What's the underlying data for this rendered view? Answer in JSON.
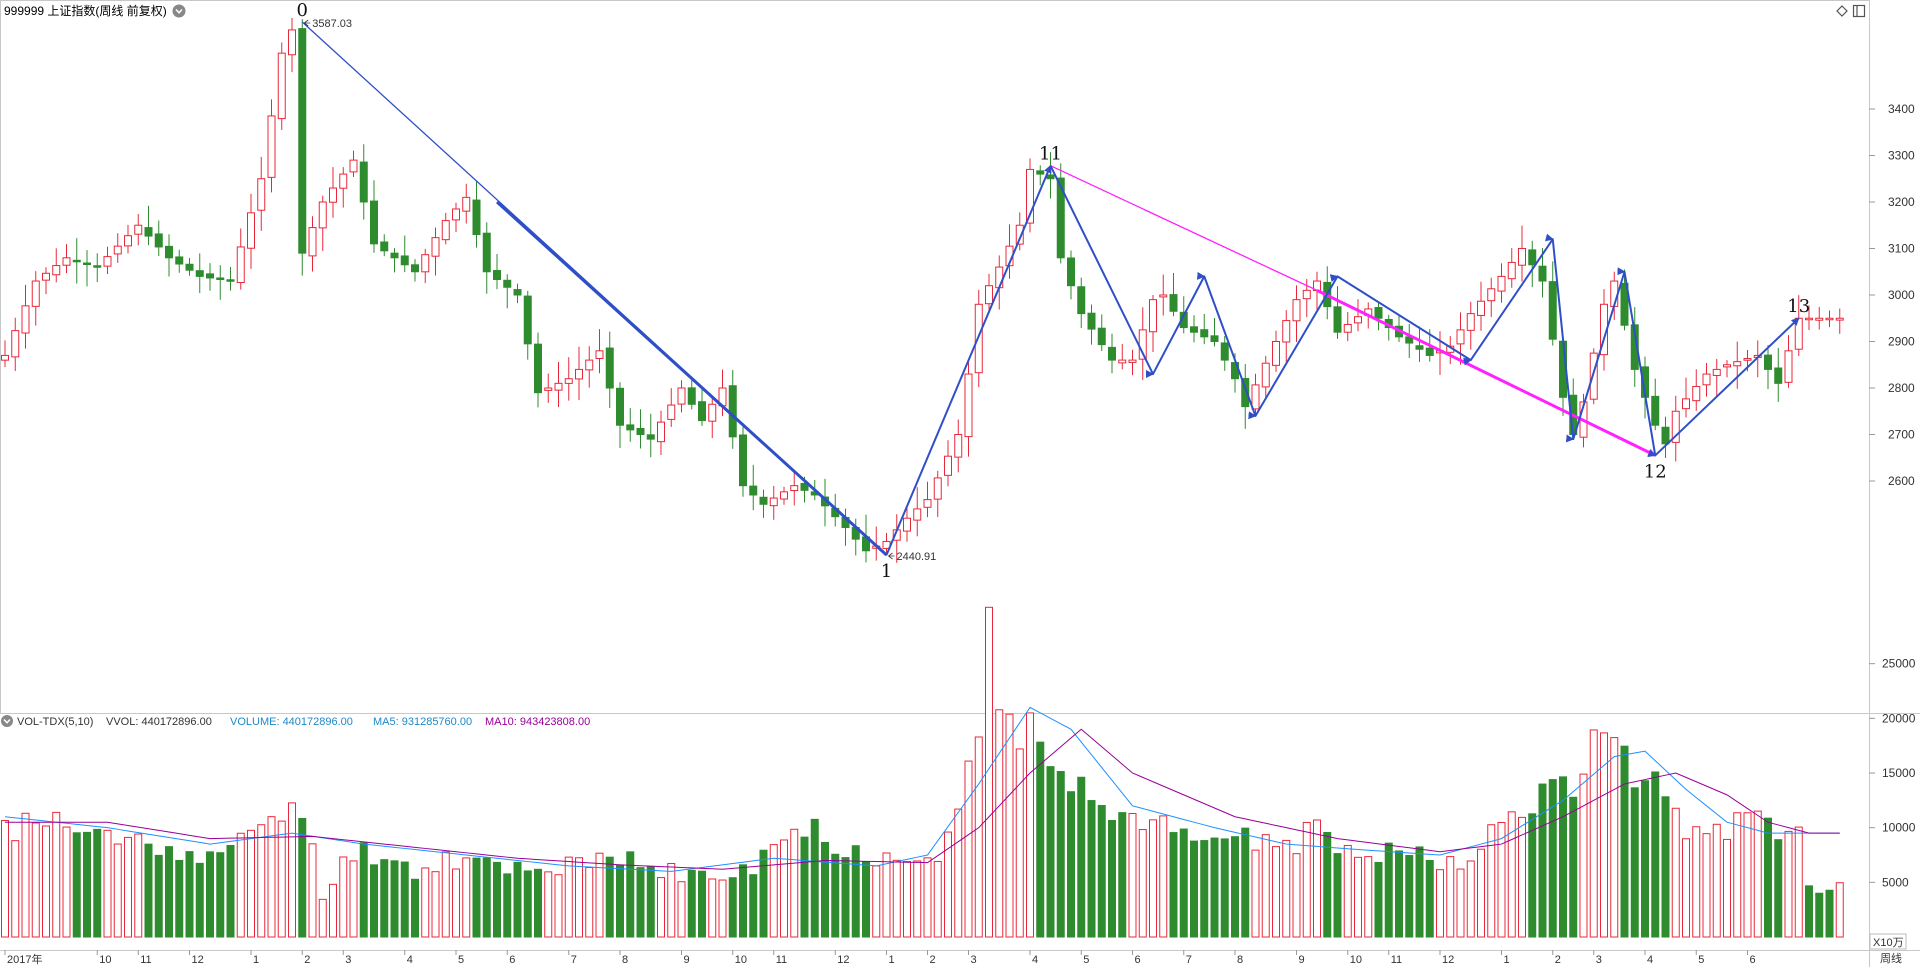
{
  "header": {
    "title": "999999 上证指数(周线 前复权)",
    "diamond_icon": "diamond-icon",
    "window_icon": "window-icon"
  },
  "volume_header": {
    "indicator": "VOL-TDX(5,10)",
    "vvol": "VVOL: 440172896.00",
    "volume": "VOLUME: 440172896.00",
    "ma5": "MA5: 931285760.00",
    "ma10": "MA10: 943423808.00"
  },
  "footer": {
    "period_label": "周线",
    "vol_unit": "X10万"
  },
  "colors": {
    "up": "#e8283a",
    "down": "#2e8b2e",
    "wave_blue": "#2f4fc8",
    "wave_magenta": "#ff21ff",
    "ma5": "#1e90ff",
    "ma10": "#990099",
    "vvol_text": "#333333",
    "volume_text": "#1e88c8",
    "ma5_text": "#1e88c8",
    "ma10_text": "#990099"
  },
  "chart_data": {
    "type": "candlestick",
    "price_axis": {
      "min": 2400,
      "max": 3600,
      "ticks": [
        2600,
        2700,
        2800,
        2900,
        3000,
        3100,
        3200,
        3300,
        3400
      ]
    },
    "volume_axis": {
      "min": 0,
      "max": 27500,
      "ticks": [
        5000,
        10000,
        15000,
        20000,
        25000
      ]
    },
    "weeks": 180,
    "time_labels": [
      {
        "i": 0,
        "label": "2017年"
      },
      {
        "i": 9,
        "label": "10"
      },
      {
        "i": 13,
        "label": "11"
      },
      {
        "i": 18,
        "label": "12"
      },
      {
        "i": 24,
        "label": "1"
      },
      {
        "i": 29,
        "label": "2"
      },
      {
        "i": 33,
        "label": "3"
      },
      {
        "i": 39,
        "label": "4"
      },
      {
        "i": 44,
        "label": "5"
      },
      {
        "i": 49,
        "label": "6"
      },
      {
        "i": 55,
        "label": "7"
      },
      {
        "i": 60,
        "label": "8"
      },
      {
        "i": 66,
        "label": "9"
      },
      {
        "i": 71,
        "label": "10"
      },
      {
        "i": 75,
        "label": "11"
      },
      {
        "i": 81,
        "label": "12"
      },
      {
        "i": 86,
        "label": "1"
      },
      {
        "i": 90,
        "label": "2"
      },
      {
        "i": 94,
        "label": "3"
      },
      {
        "i": 100,
        "label": "4"
      },
      {
        "i": 105,
        "label": "5"
      },
      {
        "i": 110,
        "label": "6"
      },
      {
        "i": 115,
        "label": "7"
      },
      {
        "i": 120,
        "label": "8"
      },
      {
        "i": 126,
        "label": "9"
      },
      {
        "i": 131,
        "label": "10"
      },
      {
        "i": 135,
        "label": "11"
      },
      {
        "i": 140,
        "label": "12"
      },
      {
        "i": 146,
        "label": "1"
      },
      {
        "i": 151,
        "label": "2"
      },
      {
        "i": 155,
        "label": "3"
      },
      {
        "i": 160,
        "label": "4"
      },
      {
        "i": 165,
        "label": "5"
      },
      {
        "i": 170,
        "label": "6"
      }
    ],
    "anchors": [
      [
        0,
        2870
      ],
      [
        3,
        3030
      ],
      [
        6,
        3080
      ],
      [
        9,
        3060
      ],
      [
        13,
        3150
      ],
      [
        16,
        3080
      ],
      [
        19,
        3040
      ],
      [
        22,
        3030
      ],
      [
        25,
        3250
      ],
      [
        27,
        3520
      ],
      [
        28,
        3570
      ],
      [
        29,
        3090
      ],
      [
        31,
        3200
      ],
      [
        34,
        3290
      ],
      [
        36,
        3110
      ],
      [
        40,
        3050
      ],
      [
        43,
        3160
      ],
      [
        45,
        3210
      ],
      [
        47,
        3050
      ],
      [
        50,
        3000
      ],
      [
        52,
        2790
      ],
      [
        55,
        2820
      ],
      [
        58,
        2880
      ],
      [
        60,
        2720
      ],
      [
        63,
        2690
      ],
      [
        66,
        2800
      ],
      [
        68,
        2730
      ],
      [
        70,
        2800
      ],
      [
        72,
        2590
      ],
      [
        74,
        2550
      ],
      [
        77,
        2590
      ],
      [
        79,
        2570
      ],
      [
        82,
        2500
      ],
      [
        84,
        2450
      ],
      [
        86,
        2470
      ],
      [
        88,
        2520
      ],
      [
        90,
        2560
      ],
      [
        93,
        2700
      ],
      [
        94,
        2830
      ],
      [
        95,
        2980
      ],
      [
        97,
        3060
      ],
      [
        99,
        3150
      ],
      [
        100,
        3270
      ],
      [
        102,
        3250
      ],
      [
        103,
        3080
      ],
      [
        105,
        2960
      ],
      [
        108,
        2860
      ],
      [
        110,
        2860
      ],
      [
        112,
        2990
      ],
      [
        113,
        3000
      ],
      [
        115,
        2930
      ],
      [
        118,
        2900
      ],
      [
        120,
        2820
      ],
      [
        121,
        2760
      ],
      [
        124,
        2900
      ],
      [
        126,
        2990
      ],
      [
        128,
        3030
      ],
      [
        130,
        2920
      ],
      [
        133,
        2970
      ],
      [
        136,
        2910
      ],
      [
        139,
        2870
      ],
      [
        141,
        2890
      ],
      [
        143,
        2960
      ],
      [
        146,
        3040
      ],
      [
        148,
        3100
      ],
      [
        150,
        3030
      ],
      [
        152,
        2780
      ],
      [
        153,
        2700
      ],
      [
        154,
        2770
      ],
      [
        156,
        2980
      ],
      [
        157,
        3030
      ],
      [
        159,
        2840
      ],
      [
        161,
        2720
      ],
      [
        162,
        2680
      ],
      [
        163,
        2750
      ],
      [
        166,
        2830
      ],
      [
        168,
        2850
      ],
      [
        171,
        2870
      ],
      [
        173,
        2810
      ],
      [
        175,
        2950
      ]
    ],
    "swing_points": [
      {
        "label": "0",
        "i": 29,
        "price": 3587.03,
        "price_label": "3587.03"
      },
      {
        "label": "1",
        "i": 86,
        "price": 2440.91,
        "price_label": "2440.91"
      },
      {
        "label": "11",
        "i": 102,
        "price": 3278
      },
      {
        "label": "12",
        "i": 161,
        "price": 2655
      },
      {
        "label": "13",
        "i": 175,
        "price": 2950
      }
    ],
    "wave_lines": [
      {
        "color": "blue",
        "width": 1.3,
        "points": [
          [
            29,
            3587
          ],
          [
            86,
            2441
          ]
        ]
      },
      {
        "color": "blue",
        "width": 3,
        "points": [
          [
            48,
            3200
          ],
          [
            86,
            2441
          ]
        ]
      },
      {
        "color": "blue",
        "width": 2,
        "arrow": true,
        "points": [
          [
            86,
            2441
          ],
          [
            102,
            3278
          ]
        ]
      },
      {
        "color": "magenta",
        "width": 1.3,
        "points": [
          [
            102,
            3278
          ],
          [
            128,
            3010
          ]
        ]
      },
      {
        "color": "magenta",
        "width": 3,
        "arrow": true,
        "points": [
          [
            128,
            3010
          ],
          [
            161,
            2655
          ]
        ]
      },
      {
        "color": "blue",
        "width": 2,
        "arrow": true,
        "points": [
          [
            102,
            3278
          ],
          [
            112,
            2830
          ],
          [
            117,
            3040
          ],
          [
            122,
            2740
          ],
          [
            130,
            3040
          ],
          [
            143,
            2860
          ],
          [
            151,
            3120
          ],
          [
            153,
            2690
          ],
          [
            158,
            3050
          ],
          [
            161,
            2655
          ],
          [
            175,
            2950
          ]
        ]
      }
    ],
    "volume": {
      "anchors": [
        [
          0,
          9500
        ],
        [
          3,
          11000
        ],
        [
          6,
          10000
        ],
        [
          9,
          9000
        ],
        [
          13,
          9000
        ],
        [
          16,
          8500
        ],
        [
          19,
          7000
        ],
        [
          22,
          7500
        ],
        [
          25,
          11000
        ],
        [
          28,
          11000
        ],
        [
          29,
          12000
        ],
        [
          31,
          4000
        ],
        [
          34,
          8000
        ],
        [
          37,
          7500
        ],
        [
          40,
          6000
        ],
        [
          43,
          7200
        ],
        [
          46,
          6900
        ],
        [
          49,
          6600
        ],
        [
          52,
          6400
        ],
        [
          55,
          6500
        ],
        [
          58,
          6700
        ],
        [
          61,
          6900
        ],
        [
          64,
          6200
        ],
        [
          67,
          5600
        ],
        [
          70,
          5400
        ],
        [
          73,
          6300
        ],
        [
          76,
          8800
        ],
        [
          79,
          10000
        ],
        [
          82,
          8000
        ],
        [
          85,
          7200
        ],
        [
          88,
          8000
        ],
        [
          91,
          7800
        ],
        [
          93,
          11000
        ],
        [
          95,
          19000
        ],
        [
          96,
          26500
        ],
        [
          98,
          18500
        ],
        [
          100,
          18000
        ],
        [
          101,
          19000
        ],
        [
          103,
          16500
        ],
        [
          105,
          14000
        ],
        [
          107,
          12000
        ],
        [
          110,
          10000
        ],
        [
          113,
          10500
        ],
        [
          116,
          10000
        ],
        [
          119,
          9000
        ],
        [
          122,
          8700
        ],
        [
          125,
          8600
        ],
        [
          128,
          9400
        ],
        [
          131,
          8000
        ],
        [
          134,
          8000
        ],
        [
          137,
          7800
        ],
        [
          140,
          7200
        ],
        [
          143,
          7300
        ],
        [
          146,
          10000
        ],
        [
          149,
          12000
        ],
        [
          151,
          13500
        ],
        [
          153,
          15000
        ],
        [
          155,
          17000
        ],
        [
          157,
          19000
        ],
        [
          159,
          16000
        ],
        [
          161,
          14000
        ],
        [
          164,
          10500
        ],
        [
          167,
          10000
        ],
        [
          170,
          10300
        ],
        [
          173,
          10200
        ],
        [
          175,
          11500
        ],
        [
          176,
          4500
        ]
      ],
      "ma5_anchors": [
        [
          0,
          11000
        ],
        [
          10,
          10000
        ],
        [
          20,
          8500
        ],
        [
          28,
          9500
        ],
        [
          35,
          8500
        ],
        [
          45,
          7500
        ],
        [
          55,
          6500
        ],
        [
          65,
          6000
        ],
        [
          75,
          7200
        ],
        [
          85,
          6500
        ],
        [
          90,
          7500
        ],
        [
          95,
          14000
        ],
        [
          100,
          21000
        ],
        [
          104,
          19000
        ],
        [
          110,
          12000
        ],
        [
          118,
          10000
        ],
        [
          125,
          8500
        ],
        [
          132,
          8000
        ],
        [
          140,
          7500
        ],
        [
          146,
          9000
        ],
        [
          152,
          12500
        ],
        [
          157,
          16500
        ],
        [
          160,
          17000
        ],
        [
          164,
          13500
        ],
        [
          168,
          10500
        ],
        [
          172,
          9500
        ],
        [
          176,
          9500
        ]
      ],
      "ma10_anchors": [
        [
          0,
          10500
        ],
        [
          10,
          10500
        ],
        [
          20,
          9000
        ],
        [
          30,
          9200
        ],
        [
          40,
          8200
        ],
        [
          50,
          7200
        ],
        [
          60,
          6600
        ],
        [
          70,
          6200
        ],
        [
          80,
          7000
        ],
        [
          90,
          6800
        ],
        [
          95,
          10000
        ],
        [
          100,
          15000
        ],
        [
          105,
          19000
        ],
        [
          110,
          15000
        ],
        [
          120,
          11000
        ],
        [
          130,
          9000
        ],
        [
          140,
          7800
        ],
        [
          146,
          8500
        ],
        [
          152,
          11000
        ],
        [
          158,
          14000
        ],
        [
          163,
          15000
        ],
        [
          168,
          13000
        ],
        [
          172,
          10500
        ],
        [
          176,
          9500
        ]
      ]
    }
  }
}
